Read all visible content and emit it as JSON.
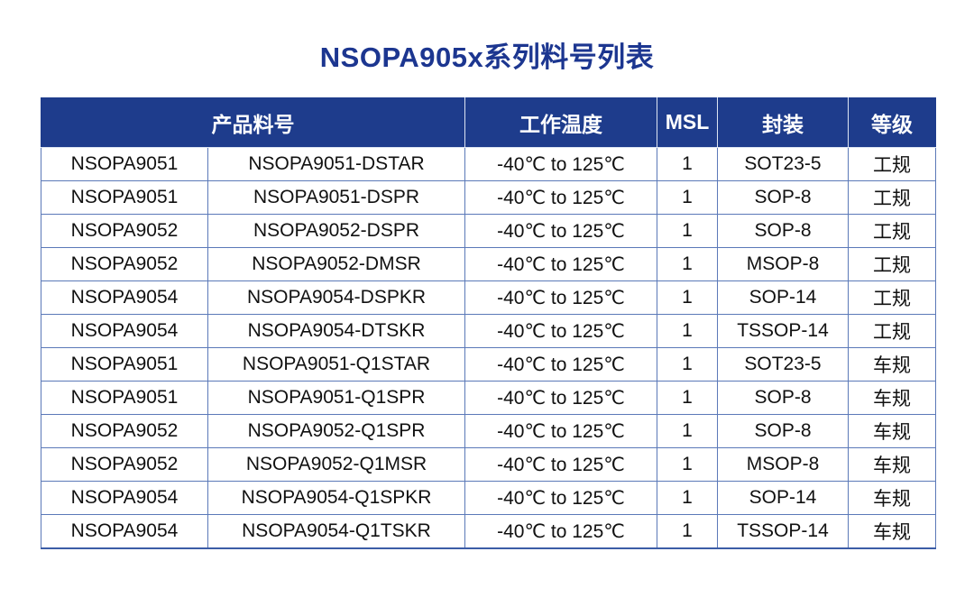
{
  "title": "NSOPA905x系列料号列表",
  "colors": {
    "title_text": "#1c3690",
    "header_bg": "#1e3c8c",
    "header_text": "#ffffff",
    "cell_border": "#5b79b8",
    "cell_text": "#111111",
    "page_bg": "#ffffff"
  },
  "table": {
    "headers": {
      "product": "产品料号",
      "temp": "工作温度",
      "msl": "MSL",
      "package": "封装",
      "grade": "等级"
    },
    "rows": [
      {
        "series": "NSOPA9051",
        "part": "NSOPA9051-DSTAR",
        "temp": "-40℃ to 125℃",
        "msl": "1",
        "package": "SOT23-5",
        "grade": "工规"
      },
      {
        "series": "NSOPA9051",
        "part": "NSOPA9051-DSPR",
        "temp": "-40℃ to 125℃",
        "msl": "1",
        "package": "SOP-8",
        "grade": "工规"
      },
      {
        "series": "NSOPA9052",
        "part": "NSOPA9052-DSPR",
        "temp": "-40℃ to 125℃",
        "msl": "1",
        "package": "SOP-8",
        "grade": "工规"
      },
      {
        "series": "NSOPA9052",
        "part": "NSOPA9052-DMSR",
        "temp": "-40℃ to 125℃",
        "msl": "1",
        "package": "MSOP-8",
        "grade": "工规"
      },
      {
        "series": "NSOPA9054",
        "part": "NSOPA9054-DSPKR",
        "temp": "-40℃ to 125℃",
        "msl": "1",
        "package": "SOP-14",
        "grade": "工规"
      },
      {
        "series": "NSOPA9054",
        "part": "NSOPA9054-DTSKR",
        "temp": "-40℃ to 125℃",
        "msl": "1",
        "package": "TSSOP-14",
        "grade": "工规"
      },
      {
        "series": "NSOPA9051",
        "part": "NSOPA9051-Q1STAR",
        "temp": "-40℃ to 125℃",
        "msl": "1",
        "package": "SOT23-5",
        "grade": "车规"
      },
      {
        "series": "NSOPA9051",
        "part": "NSOPA9051-Q1SPR",
        "temp": "-40℃ to 125℃",
        "msl": "1",
        "package": "SOP-8",
        "grade": "车规"
      },
      {
        "series": "NSOPA9052",
        "part": "NSOPA9052-Q1SPR",
        "temp": "-40℃ to 125℃",
        "msl": "1",
        "package": "SOP-8",
        "grade": "车规"
      },
      {
        "series": "NSOPA9052",
        "part": "NSOPA9052-Q1MSR",
        "temp": "-40℃ to 125℃",
        "msl": "1",
        "package": "MSOP-8",
        "grade": "车规"
      },
      {
        "series": "NSOPA9054",
        "part": "NSOPA9054-Q1SPKR",
        "temp": "-40℃ to 125℃",
        "msl": "1",
        "package": "SOP-14",
        "grade": "车规"
      },
      {
        "series": "NSOPA9054",
        "part": "NSOPA9054-Q1TSKR",
        "temp": "-40℃ to 125℃",
        "msl": "1",
        "package": "TSSOP-14",
        "grade": "车规"
      }
    ]
  }
}
